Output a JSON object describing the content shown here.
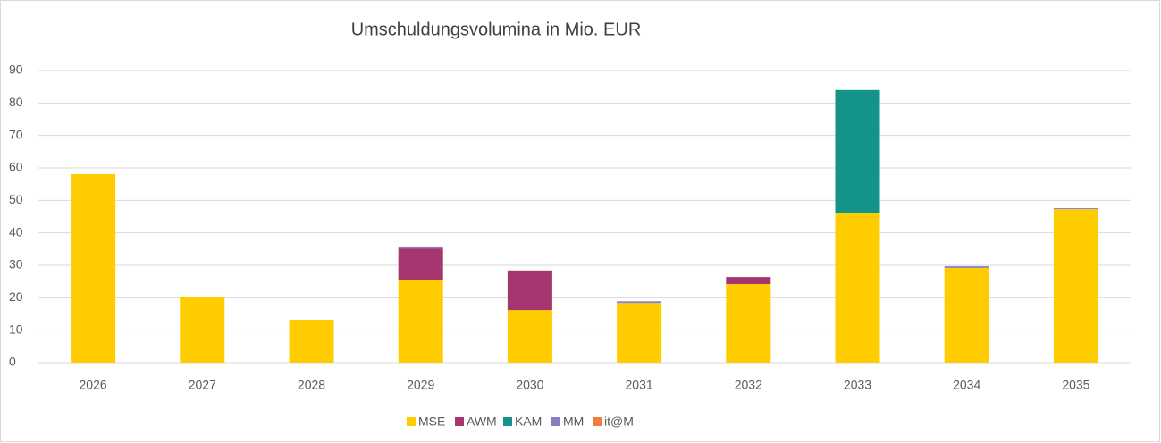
{
  "chart_data": {
    "type": "stacked_bar",
    "title": "Umschuldungsvolumina in Mio. EUR",
    "categories": [
      "2026",
      "2027",
      "2028",
      "2029",
      "2030",
      "2031",
      "2032",
      "2033",
      "2034",
      "2035"
    ],
    "series": [
      {
        "name": "MSE",
        "color": "#ffcc00",
        "values": [
          58.1,
          20.3,
          13.2,
          25.6,
          16.2,
          18.4,
          24.2,
          46.2,
          29.2,
          47.3
        ]
      },
      {
        "name": "AWM",
        "color": "#a5366f",
        "values": [
          0,
          0,
          0,
          9.6,
          12.2,
          0,
          2.2,
          0,
          0,
          0
        ]
      },
      {
        "name": "KAM",
        "color": "#13938a",
        "values": [
          0,
          0,
          0,
          0,
          0,
          0,
          0,
          37.8,
          0,
          0
        ]
      },
      {
        "name": "MM",
        "color": "#8e7cc3",
        "values": [
          0,
          0,
          0,
          0.6,
          0,
          0.5,
          0,
          0,
          0.5,
          0.3
        ]
      },
      {
        "name": "it@M",
        "color": "#f07f3c",
        "values": [
          0,
          0,
          0,
          0,
          0,
          0,
          0,
          0,
          0,
          0
        ]
      }
    ],
    "ylim": [
      0,
      90
    ],
    "yticks": [
      0,
      10,
      20,
      30,
      40,
      50,
      60,
      70,
      80,
      90
    ],
    "grid": true,
    "legend": "bottom"
  }
}
